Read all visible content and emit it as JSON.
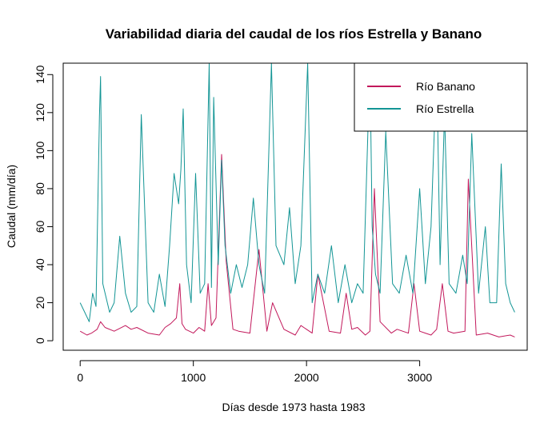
{
  "chart_data": {
    "type": "line",
    "title": "Variabilidad diaria del caudal de los ríos Estrella y Banano",
    "xlabel": "Días desde 1973 hasta 1983",
    "ylabel": "Caudal (mm/día)",
    "xlim": [
      -150,
      3950
    ],
    "ylim": [
      -5,
      146
    ],
    "xticks": [
      0,
      1000,
      2000,
      3000
    ],
    "yticks": [
      0,
      20,
      40,
      60,
      80,
      100,
      120,
      140
    ],
    "legend_position": "top-right",
    "series": [
      {
        "name": "Río Banano",
        "color": "#C2185B",
        "x": [
          0,
          60,
          100,
          150,
          180,
          220,
          300,
          400,
          450,
          500,
          600,
          700,
          750,
          800,
          850,
          880,
          900,
          930,
          1000,
          1050,
          1100,
          1130,
          1160,
          1200,
          1250,
          1290,
          1350,
          1400,
          1500,
          1580,
          1650,
          1700,
          1800,
          1900,
          1950,
          2050,
          2100,
          2200,
          2300,
          2350,
          2400,
          2450,
          2520,
          2560,
          2600,
          2650,
          2750,
          2800,
          2900,
          2950,
          3000,
          3050,
          3100,
          3150,
          3200,
          3250,
          3300,
          3400,
          3430,
          3500,
          3600,
          3700,
          3800,
          3840
        ],
        "values": [
          5,
          3,
          4,
          6,
          10,
          7,
          5,
          8,
          6,
          7,
          4,
          3,
          7,
          9,
          12,
          30,
          9,
          6,
          4,
          7,
          5,
          30,
          8,
          12,
          98,
          42,
          6,
          5,
          4,
          48,
          5,
          20,
          6,
          3,
          8,
          4,
          35,
          5,
          4,
          25,
          6,
          7,
          3,
          5,
          80,
          10,
          4,
          6,
          4,
          30,
          5,
          4,
          3,
          6,
          30,
          5,
          4,
          5,
          85,
          3,
          4,
          2,
          3,
          2
        ]
      },
      {
        "name": "Río Estrella",
        "color": "#139595",
        "x": [
          0,
          40,
          80,
          110,
          140,
          170,
          180,
          200,
          260,
          300,
          350,
          400,
          450,
          500,
          540,
          600,
          650,
          700,
          750,
          790,
          830,
          870,
          890,
          910,
          940,
          980,
          1020,
          1060,
          1100,
          1140,
          1160,
          1180,
          1220,
          1250,
          1280,
          1330,
          1380,
          1430,
          1480,
          1530,
          1580,
          1630,
          1690,
          1730,
          1800,
          1850,
          1900,
          1950,
          2010,
          2050,
          2100,
          2160,
          2220,
          2280,
          2340,
          2400,
          2450,
          2500,
          2560,
          2580,
          2610,
          2650,
          2700,
          2760,
          2820,
          2880,
          2940,
          3000,
          3050,
          3100,
          3150,
          3180,
          3220,
          3260,
          3320,
          3380,
          3420,
          3460,
          3520,
          3580,
          3620,
          3680,
          3720,
          3760,
          3800,
          3840
        ],
        "values": [
          20,
          15,
          10,
          25,
          18,
          118,
          139,
          30,
          15,
          20,
          55,
          25,
          15,
          18,
          119,
          20,
          15,
          35,
          18,
          50,
          88,
          72,
          90,
          122,
          40,
          20,
          88,
          25,
          30,
          146,
          28,
          128,
          40,
          95,
          50,
          25,
          40,
          28,
          40,
          75,
          40,
          25,
          146,
          50,
          40,
          70,
          30,
          50,
          146,
          20,
          35,
          25,
          50,
          20,
          40,
          20,
          30,
          25,
          146,
          60,
          35,
          25,
          110,
          30,
          25,
          45,
          25,
          80,
          30,
          60,
          146,
          40,
          120,
          30,
          25,
          45,
          30,
          109,
          25,
          60,
          20,
          20,
          93,
          30,
          20,
          15
        ]
      }
    ]
  }
}
